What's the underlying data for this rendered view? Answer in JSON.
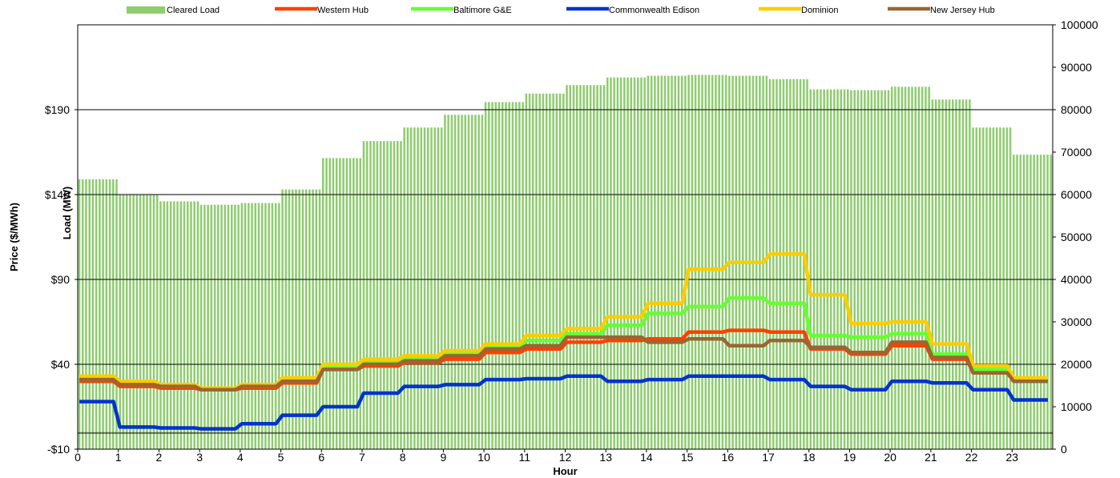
{
  "chart_data": {
    "type": "bar+line",
    "title": "",
    "xlabel": "Hour",
    "ylabel_left": "Price ($/MWh)",
    "ylabel_inner": "Load (MW)",
    "x_ticks": [
      "0",
      "1",
      "2",
      "3",
      "4",
      "5",
      "6",
      "7",
      "8",
      "9",
      "10",
      "11",
      "12",
      "13",
      "14",
      "15",
      "16",
      "17",
      "18",
      "19",
      "20",
      "21",
      "22",
      "23"
    ],
    "y_left_ticks": [
      "-$10",
      "$40",
      "$90",
      "$140",
      "$190"
    ],
    "y_left_values": [
      -10,
      40,
      90,
      140,
      190
    ],
    "y_left_range": [
      -10,
      240
    ],
    "y_right_ticks": [
      "0",
      "10000",
      "20000",
      "30000",
      "40000",
      "50000",
      "60000",
      "70000",
      "80000",
      "90000",
      "100000"
    ],
    "y_right_range": [
      0,
      100000
    ],
    "grid": "horizontal at left-axis ticks",
    "legend_position": "top",
    "load": {
      "name": "Cleared Load",
      "color": "#8fcc70",
      "values": [
        63600,
        60000,
        58400,
        57600,
        58000,
        61200,
        68600,
        72600,
        75800,
        78800,
        81800,
        83800,
        85800,
        87600,
        88000,
        88200,
        88000,
        87200,
        84800,
        84600,
        85400,
        82400,
        75800,
        69400
      ]
    },
    "series": [
      {
        "name": "Western Hub",
        "color": "#ff4000",
        "values": [
          30,
          27,
          26,
          25,
          26,
          29,
          37,
          39,
          41,
          43,
          47,
          49,
          53,
          54,
          55,
          59,
          60,
          59,
          49,
          46,
          51,
          43,
          35,
          30
        ]
      },
      {
        "name": "Baltimore G&E",
        "color": "#66ff33",
        "values": [
          32,
          29,
          27,
          26,
          27,
          31,
          39,
          42,
          44,
          46,
          50,
          54,
          58,
          63,
          70,
          74,
          79,
          76,
          57,
          56,
          58,
          46,
          37,
          31
        ]
      },
      {
        "name": "Commonwealth Edison",
        "color": "#0033cc",
        "values": [
          18,
          3,
          2.5,
          2,
          5,
          10,
          15,
          23,
          27,
          28,
          31,
          31.5,
          33,
          30,
          31,
          33,
          33,
          31,
          27,
          25,
          30,
          29,
          25,
          19
        ]
      },
      {
        "name": "Dominion",
        "color": "#ffcc00",
        "values": [
          33,
          30,
          28,
          26,
          28,
          32,
          40,
          43,
          45,
          48,
          52,
          57,
          61,
          68,
          76,
          96,
          100,
          105,
          81,
          64,
          65,
          52,
          39,
          32
        ]
      },
      {
        "name": "New Jersey Hub",
        "color": "#996633",
        "values": [
          31,
          28,
          27,
          25,
          27,
          30,
          37,
          40,
          42,
          45,
          49,
          51,
          56,
          56,
          53,
          55,
          51,
          54,
          50,
          47,
          53,
          44,
          35,
          30
        ]
      }
    ]
  }
}
